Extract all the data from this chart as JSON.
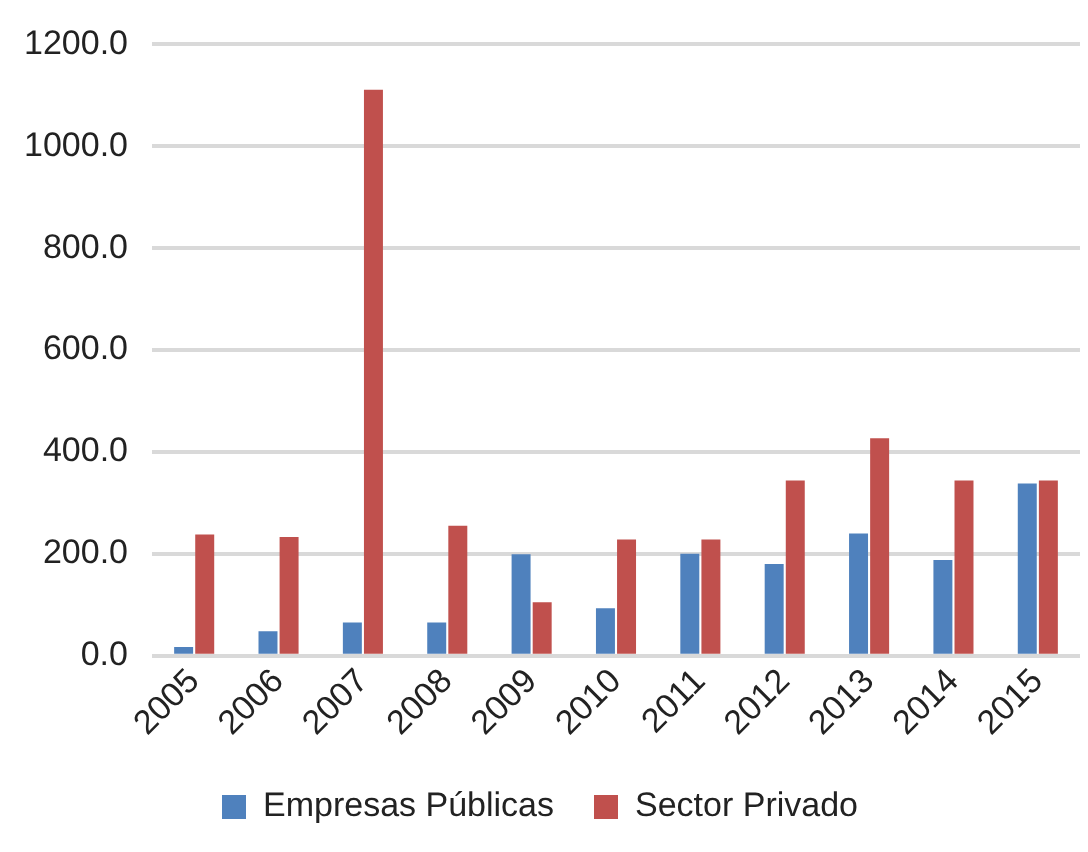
{
  "chart_data": {
    "type": "bar",
    "categories": [
      "2005",
      "2006",
      "2007",
      "2008",
      "2009",
      "2010",
      "2011",
      "2012",
      "2013",
      "2014",
      "2015"
    ],
    "series": [
      {
        "name": "Empresas Públicas",
        "color": "#4f81bd",
        "values": [
          17,
          48,
          65,
          65,
          199,
          93,
          200,
          180,
          240,
          188,
          338
        ]
      },
      {
        "name": "Sector Privado",
        "color": "#c0504d",
        "values": [
          238,
          233,
          1111,
          255,
          105,
          228,
          228,
          344,
          427,
          344,
          344
        ]
      }
    ],
    "ylim": [
      0,
      1200
    ],
    "yticks": [
      {
        "value": 0,
        "label": "0.0"
      },
      {
        "value": 200,
        "label": "200.0"
      },
      {
        "value": 400,
        "label": "400.0"
      },
      {
        "value": 600,
        "label": "600.0"
      },
      {
        "value": 800,
        "label": "800.0"
      },
      {
        "value": 1000,
        "label": "1000.0"
      },
      {
        "value": 1200,
        "label": "1200.0"
      }
    ],
    "grid": "y",
    "legend": "bottom"
  }
}
